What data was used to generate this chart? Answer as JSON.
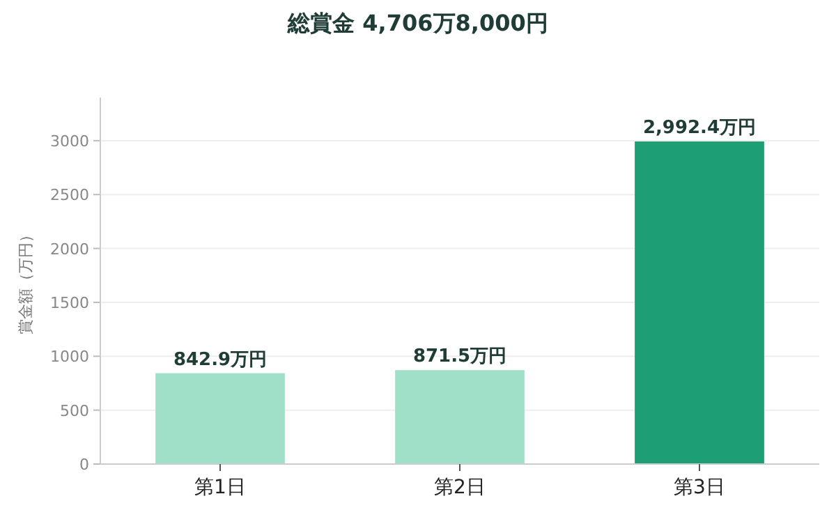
{
  "chart_data": {
    "type": "bar",
    "title": "総賞金 4,706万8,000円",
    "ylabel": "賞金額（万円）",
    "categories": [
      "第1日",
      "第2日",
      "第3日"
    ],
    "values": [
      842.9,
      871.5,
      2992.4
    ],
    "colors": [
      "#a0e0c8",
      "#a0e0c8",
      "#1e9e74"
    ],
    "value_labels": [
      "842.9万円",
      "871.5万円",
      "2,992.4万円"
    ],
    "ylim": [
      0,
      3400
    ],
    "yticks": [
      0,
      500,
      1000,
      1500,
      2000,
      2500,
      3000
    ],
    "grid": "y"
  }
}
